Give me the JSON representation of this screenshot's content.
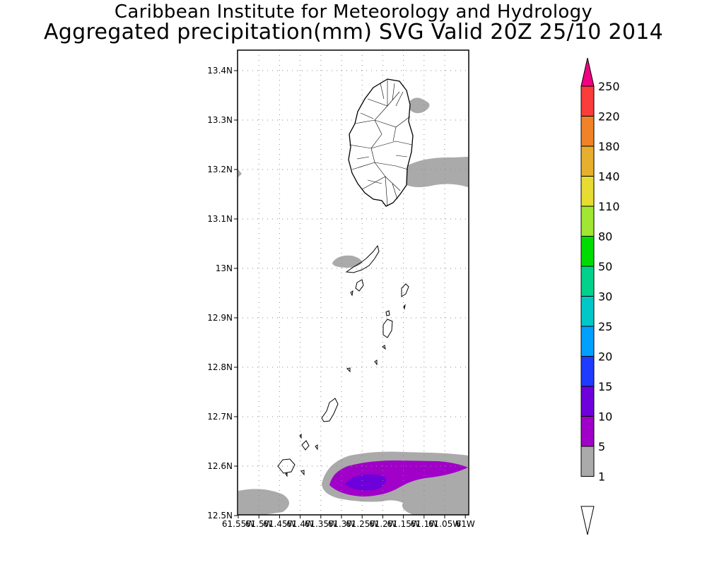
{
  "title_line1": "Caribbean Institute for Meteorology and Hydrology",
  "title_line2": "Aggregated precipitation(mm) SVG Valid 20Z 25/10 2014",
  "lat_labels": [
    "13.4N",
    "13.3N",
    "13.2N",
    "13.1N",
    "13N",
    "12.9N",
    "12.8N",
    "12.7N",
    "12.6N",
    "12.5N"
  ],
  "lon_labels": [
    "61.55W",
    "61.5W",
    "61.45W",
    "61.4W",
    "61.35W",
    "61.3W",
    "61.25W",
    "61.2W",
    "61.15W",
    "61.1W",
    "61.05W",
    "61W"
  ],
  "colorbar": {
    "levels": [
      "1",
      "5",
      "10",
      "15",
      "20",
      "25",
      "30",
      "50",
      "80",
      "110",
      "140",
      "180",
      "220",
      "250"
    ],
    "colors": [
      "#aaaaaa",
      "#a000c8",
      "#6e00dc",
      "#1e3cff",
      "#00a0ff",
      "#00c8c8",
      "#00d28c",
      "#00dc00",
      "#a0e632",
      "#e6dc32",
      "#e6af2d",
      "#f08228",
      "#fa3c3c",
      "#f00082"
    ]
  }
}
